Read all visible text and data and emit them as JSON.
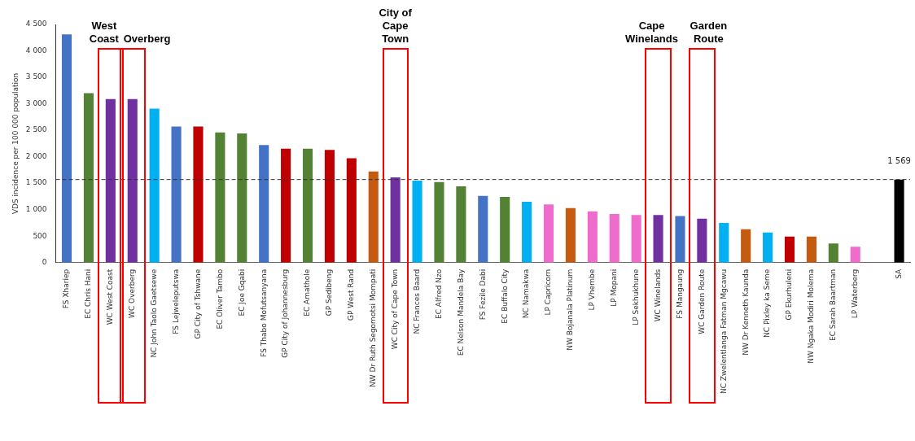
{
  "chart_data": {
    "type": "bar",
    "ylabel": "VDS incidence per 100 000 population",
    "categories": [
      "FS Xhariep",
      "EC Chris Hani",
      "WC West Coast",
      "WC Overberg",
      "NC John Taolo Gaetsewe",
      "FS Lejweleputswa",
      "GP City of Tshwane",
      "EC Oliver Tambo",
      "EC Joe Gqabi",
      "FS Thabo Mofutsanyana",
      "GP City of Johannesburg",
      "EC Amathole",
      "GP Sedibeng",
      "GP West Rand",
      "NW Dr Ruth Segomotsi Mompati",
      "WC City of Cape Town",
      "NC Frances Baard",
      "EC Alfred Nzo",
      "EC Nelson Mandela Bay",
      "FS Fezile Dabi",
      "EC Buffalo City",
      "NC Namakwa",
      "LP Capricorn",
      "NW Bojanala Platinum",
      "LP Vhembe",
      "LP Mopani",
      "LP Sekhukhune",
      "WC Winelands",
      "FS Mangaung",
      "WC Garden Route",
      "NC Zwelentlanga Fatman Mgcawu",
      "NW Dr Kenneth Kaunda",
      "NC Pixley ka Seme",
      "GP Ekurhuleni",
      "NW Ngaka Modiri Molema",
      "EC Sarah Baartman",
      "LP Waterberg",
      null,
      "SA"
    ],
    "values": [
      4310,
      3200,
      3090,
      3090,
      2910,
      2570,
      2570,
      2460,
      2440,
      2220,
      2150,
      2150,
      2130,
      1970,
      1720,
      1610,
      1550,
      1520,
      1440,
      1260,
      1240,
      1150,
      1100,
      1030,
      970,
      920,
      900,
      900,
      880,
      830,
      750,
      630,
      570,
      490,
      490,
      360,
      300,
      null,
      1569
    ],
    "colors": [
      "#4472c4",
      "#548235",
      "#7030a0",
      "#7030a0",
      "#00b0f0",
      "#4472c4",
      "#c00000",
      "#548235",
      "#548235",
      "#4472c4",
      "#c00000",
      "#548235",
      "#c00000",
      "#c00000",
      "#c55a11",
      "#7030a0",
      "#00b0f0",
      "#548235",
      "#548235",
      "#4472c4",
      "#548235",
      "#00b0f0",
      "#f06ccc",
      "#c55a11",
      "#f06ccc",
      "#f06ccc",
      "#f06ccc",
      "#7030a0",
      "#4472c4",
      "#7030a0",
      "#00b0f0",
      "#c55a11",
      "#00b0f0",
      "#c00000",
      "#c55a11",
      "#548235",
      "#f06ccc",
      "#000000",
      "#000000"
    ],
    "value_labels": [
      null,
      null,
      null,
      null,
      null,
      null,
      null,
      null,
      null,
      null,
      null,
      null,
      null,
      null,
      null,
      null,
      null,
      null,
      null,
      null,
      null,
      null,
      null,
      null,
      null,
      null,
      null,
      null,
      null,
      null,
      null,
      null,
      null,
      null,
      null,
      null,
      null,
      null,
      "1 569"
    ],
    "ylim": [
      0,
      4500
    ],
    "yticks": [
      0,
      500,
      {
        "value": 1000,
        "label": "1 000"
      },
      {
        "value": 1500,
        "label": "1 500"
      },
      {
        "value": 2000,
        "label": "2 000"
      },
      {
        "value": 2500,
        "label": "2 500"
      },
      {
        "value": 3000,
        "label": "3 000"
      },
      {
        "value": 3500,
        "label": "3 500"
      },
      {
        "value": 4000,
        "label": "4 000"
      },
      {
        "value": 4500,
        "label": "4 500"
      }
    ],
    "ref_lines": [
      {
        "axis": "y",
        "value": 1569,
        "color": "#333333",
        "line_style": "dashed"
      }
    ],
    "annotations": [
      "West Coast",
      "Overberg",
      "City of Cape Town",
      "Cape Winelands",
      "Garden Route"
    ],
    "grid": false,
    "legend": false
  }
}
